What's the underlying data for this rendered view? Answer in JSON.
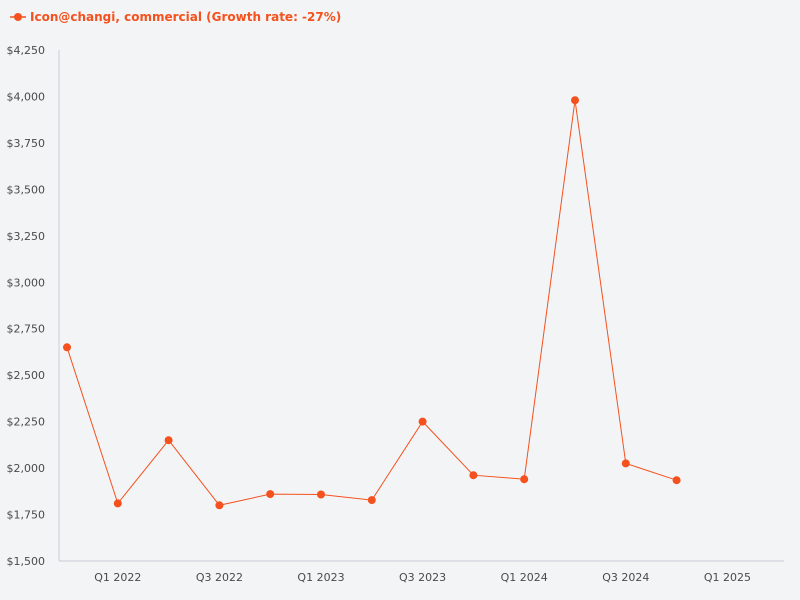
{
  "chart_data": {
    "type": "line",
    "legend": {
      "label": "Icon@changi, commercial (Growth rate: -27%)",
      "position": "top-left"
    },
    "series": [
      {
        "name": "Icon@changi, commercial (Growth rate: -27%)",
        "color": "#f4511e",
        "values": [
          2650,
          1810,
          2150,
          1800,
          1860,
          1858,
          1828,
          2250,
          1962,
          1940,
          3980,
          2025,
          1935
        ]
      }
    ],
    "x_tick_labels": [
      "Q1 2022",
      "Q3 2022",
      "Q1 2023",
      "Q3 2023",
      "Q1 2024",
      "Q3 2024",
      "Q1 2025"
    ],
    "y_tick_labels": [
      "$1,500",
      "$1,750",
      "$2,000",
      "$2,250",
      "$2,500",
      "$2,750",
      "$3,000",
      "$3,250",
      "$3,500",
      "$3,750",
      "$4,000",
      "$4,250"
    ],
    "ylim": [
      1500,
      4250
    ],
    "grid": false
  }
}
